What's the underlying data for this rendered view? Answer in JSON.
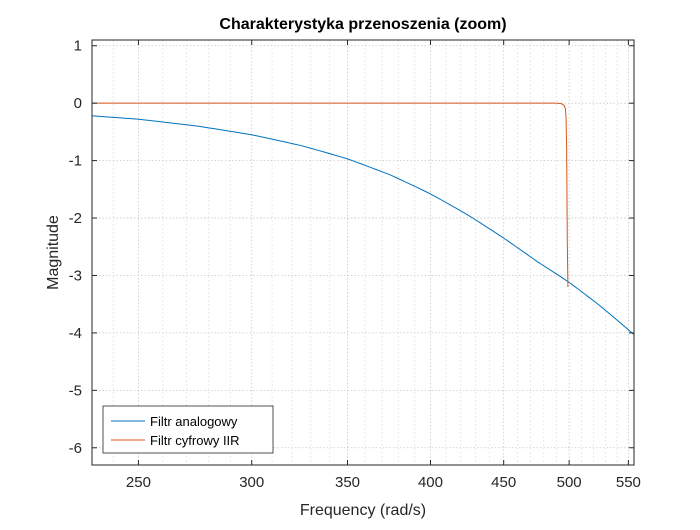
{
  "chart_data": {
    "type": "line",
    "title": "Charakterystyka przenoszenia (zoom)",
    "xlabel": "Frequency (rad/s)",
    "ylabel": "Magnitude",
    "xscale": "log",
    "xlim": [
      232,
      555
    ],
    "ylim": [
      -6.3,
      1.1
    ],
    "xticks": [
      250,
      300,
      350,
      400,
      450,
      500,
      550
    ],
    "xtick_labels": [
      "250",
      "300",
      "350",
      "400",
      "450",
      "500",
      "550"
    ],
    "yticks": [
      1,
      0,
      -1,
      -2,
      -3,
      -4,
      -5,
      -6
    ],
    "ytick_labels": [
      "1",
      "0",
      "-1",
      "-2",
      "-3",
      "-4",
      "-5",
      "-6"
    ],
    "grid": true,
    "minor_grid": true,
    "legend": {
      "position": "bottom-left"
    },
    "series": [
      {
        "name": "Filtr analogowy",
        "color": "#0072BD",
        "x": [
          232,
          250,
          275,
          300,
          325,
          350,
          375,
          400,
          425,
          450,
          475,
          500,
          525,
          555
        ],
        "y": [
          -0.22,
          -0.28,
          -0.4,
          -0.55,
          -0.74,
          -0.97,
          -1.25,
          -1.58,
          -1.95,
          -2.35,
          -2.76,
          -3.12,
          -3.52,
          -4.03
        ]
      },
      {
        "name": "Filtr cyfrowy IIR",
        "color": "#D95319",
        "x": [
          232,
          300,
          400,
          480,
          490,
          494,
          496,
          497,
          497.5,
          498,
          498.5,
          499
        ],
        "y": [
          0,
          0,
          0,
          0,
          0,
          -0.01,
          -0.04,
          -0.1,
          -0.25,
          -0.8,
          -2.4,
          -3.2
        ]
      }
    ]
  }
}
